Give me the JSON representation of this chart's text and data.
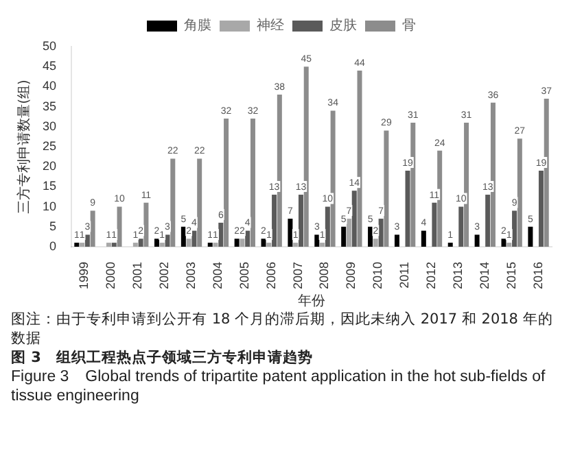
{
  "chart_data": {
    "type": "bar",
    "title": "图 3　组织工程热点子领域三方专利申请趋势",
    "subtitle": "Figure 3　Global trends of tripartite patent application in the hot sub-fields of tissue engineering",
    "annotations": [
      "图注：由于专利申请到公开有 18 个月的滞后期，因此未纳入 2017 和 2018 年的数据"
    ],
    "xlabel": "年份",
    "ylabel": "三方专利申请数量(组)",
    "categories": [
      "1999",
      "2000",
      "2001",
      "2002",
      "2003",
      "2004",
      "2005",
      "2006",
      "2007",
      "2008",
      "2009",
      "2010",
      "2011",
      "2012",
      "2013",
      "2014",
      "2015",
      "2016"
    ],
    "series": [
      {
        "name": "角膜",
        "color": "#000000",
        "values": [
          1,
          0,
          0,
          2,
          5,
          1,
          2,
          2,
          7,
          3,
          5,
          5,
          3,
          4,
          1,
          3,
          2,
          5
        ],
        "value_labels": [
          "1",
          null,
          null,
          "2",
          "5",
          "1",
          "2",
          "2",
          "7",
          "3",
          "5",
          "5",
          "3",
          "4",
          "1",
          "3",
          "2",
          "5"
        ]
      },
      {
        "name": "神经",
        "color": "#a8a8a8",
        "values": [
          1,
          1,
          1,
          1,
          2,
          1,
          2,
          1,
          1,
          1,
          7,
          2,
          0,
          0,
          0,
          0,
          1,
          0
        ],
        "value_labels": [
          "1",
          "1",
          "1",
          "1",
          "2",
          "1",
          "2",
          "1",
          "1",
          "1",
          "7",
          "2",
          null,
          null,
          null,
          null,
          "1",
          null
        ]
      },
      {
        "name": "皮肤",
        "color": "#5a5a5a",
        "values": [
          3,
          1,
          2,
          3,
          4,
          6,
          4,
          13,
          13,
          10,
          14,
          7,
          19,
          11,
          10,
          13,
          9,
          19
        ],
        "value_labels": [
          "3",
          "1",
          "2",
          "3",
          "4",
          "6",
          "4",
          "13",
          "13",
          "10",
          "14",
          "7",
          "19",
          "11",
          "10",
          "13",
          "9",
          "19"
        ]
      },
      {
        "name": "骨",
        "color": "#8c8c8c",
        "values": [
          9,
          10,
          11,
          22,
          22,
          32,
          32,
          38,
          45,
          34,
          44,
          29,
          31,
          24,
          31,
          36,
          27,
          37
        ],
        "value_labels": [
          "9",
          "10",
          "11",
          "22",
          "22",
          "32",
          "32",
          "38",
          "45",
          "34",
          "44",
          "29",
          "31",
          "24",
          "31",
          "36",
          "27",
          "37"
        ]
      }
    ],
    "ylim": [
      0,
      50
    ],
    "yticks": [
      0,
      5,
      10,
      15,
      20,
      25,
      30,
      35,
      40,
      45,
      50
    ],
    "grid": false,
    "legend": "top"
  }
}
